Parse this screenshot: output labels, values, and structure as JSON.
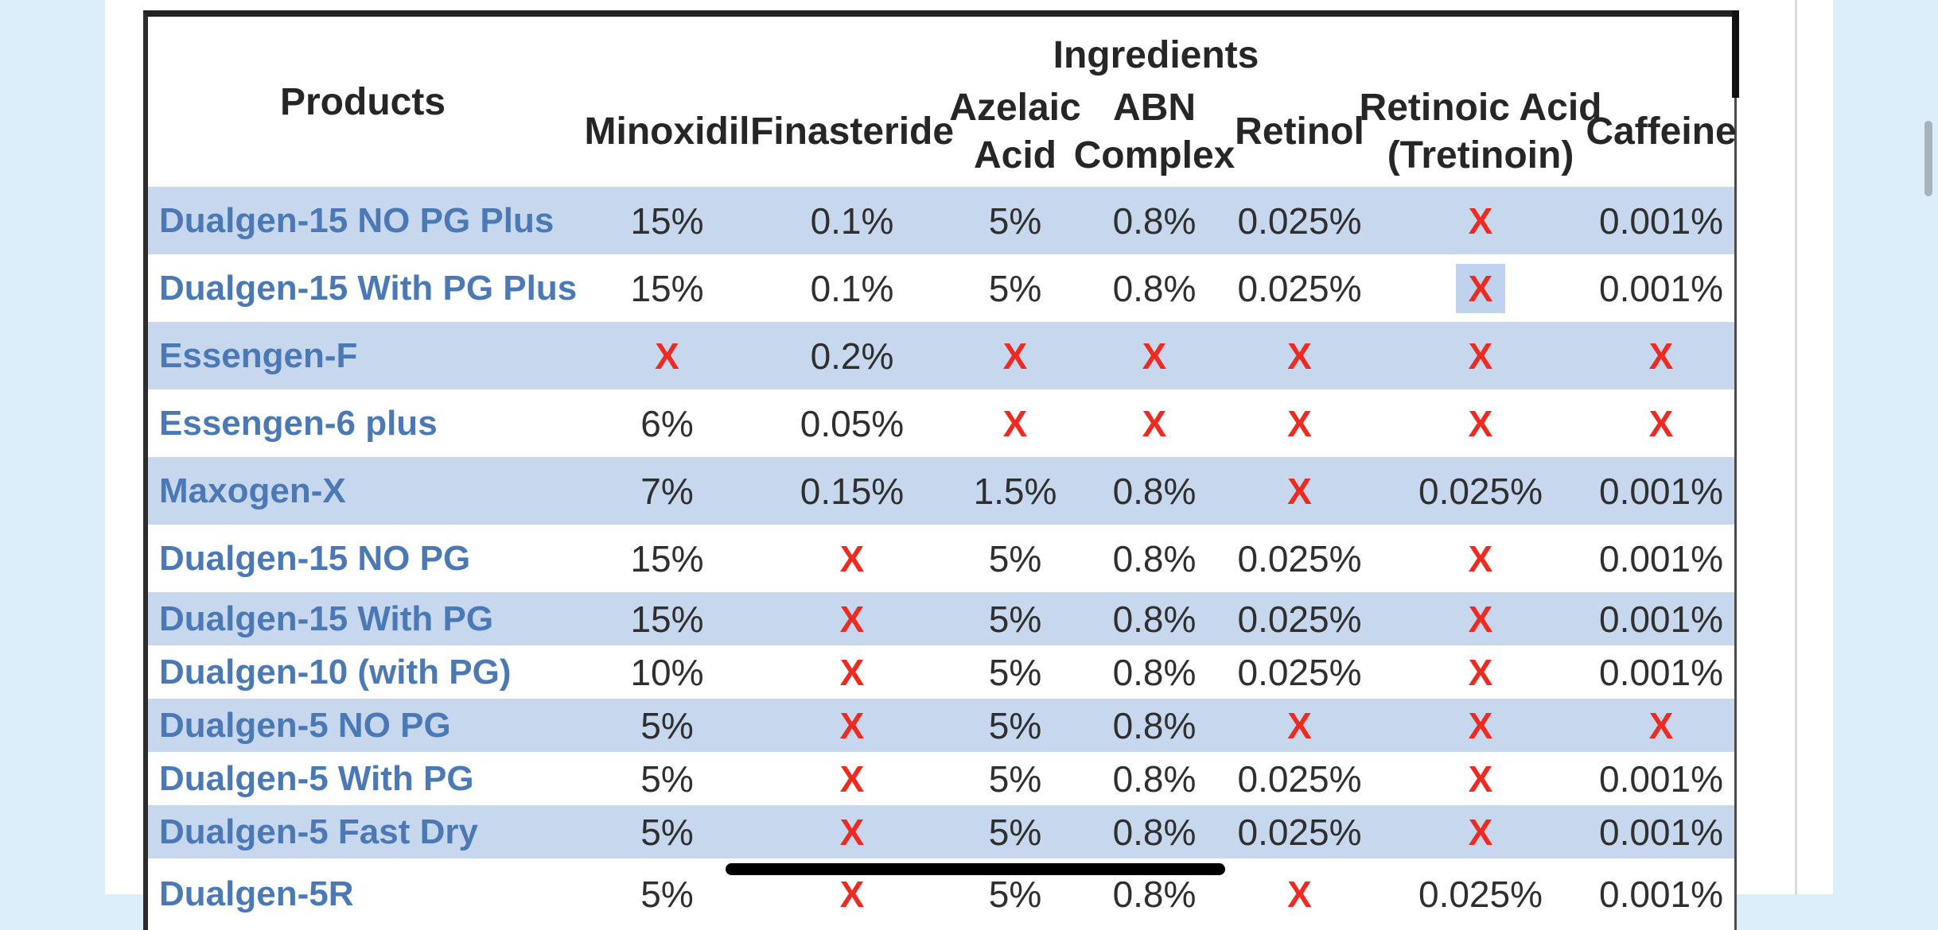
{
  "colors": {
    "page_background_blue": "#ddeefb",
    "row_stripe_blue": "#c7d7ee",
    "product_link_blue": "#4a79b6",
    "x_red": "#ee2a21"
  },
  "table": {
    "group_header": "Ingredients",
    "columns": [
      "Products",
      "Minoxidil",
      "Finasteride",
      "Azelaic\nAcid",
      "ABN\nComplex",
      "Retinol",
      "Retinoic Acid\n(Tretinoin)",
      "Caffeine"
    ],
    "rows": [
      {
        "product": "Dualgen-15 NO PG Plus",
        "values": [
          "15%",
          "0.1%",
          "5%",
          "0.8%",
          "0.025%",
          "X",
          "0.001%"
        ]
      },
      {
        "product": "Dualgen-15 With PG Plus",
        "values": [
          "15%",
          "0.1%",
          "5%",
          "0.8%",
          "0.025%",
          "X",
          "0.001%"
        ]
      },
      {
        "product": "Essengen-F",
        "values": [
          "X",
          "0.2%",
          "X",
          "X",
          "X",
          "X",
          "X"
        ]
      },
      {
        "product": "Essengen-6 plus",
        "values": [
          "6%",
          "0.05%",
          "X",
          "X",
          "X",
          "X",
          "X"
        ]
      },
      {
        "product": "Maxogen-X",
        "values": [
          "7%",
          "0.15%",
          "1.5%",
          "0.8%",
          "X",
          "0.025%",
          "0.001%"
        ]
      },
      {
        "product": "Dualgen-15 NO PG",
        "values": [
          "15%",
          "X",
          "5%",
          "0.8%",
          "0.025%",
          "X",
          "0.001%"
        ]
      },
      {
        "product": "Dualgen-15 With PG",
        "values": [
          "15%",
          "X",
          "5%",
          "0.8%",
          "0.025%",
          "X",
          "0.001%"
        ]
      },
      {
        "product": "Dualgen-10 (with PG)",
        "values": [
          "10%",
          "X",
          "5%",
          "0.8%",
          "0.025%",
          "X",
          "0.001%"
        ]
      },
      {
        "product": "Dualgen-5 NO PG",
        "values": [
          "5%",
          "X",
          "5%",
          "0.8%",
          "X",
          "X",
          "X"
        ]
      },
      {
        "product": "Dualgen-5 With PG",
        "values": [
          "5%",
          "X",
          "5%",
          "0.8%",
          "0.025%",
          "X",
          "0.001%"
        ]
      },
      {
        "product": "Dualgen-5 Fast Dry",
        "values": [
          "5%",
          "X",
          "5%",
          "0.8%",
          "0.025%",
          "X",
          "0.001%"
        ]
      },
      {
        "product": "Dualgen-5R",
        "values": [
          "5%",
          "X",
          "5%",
          "0.8%",
          "X",
          "0.025%",
          "0.001%"
        ]
      }
    ],
    "selected_cell": {
      "row_index": 1,
      "col_index": 5,
      "value": "X"
    }
  }
}
